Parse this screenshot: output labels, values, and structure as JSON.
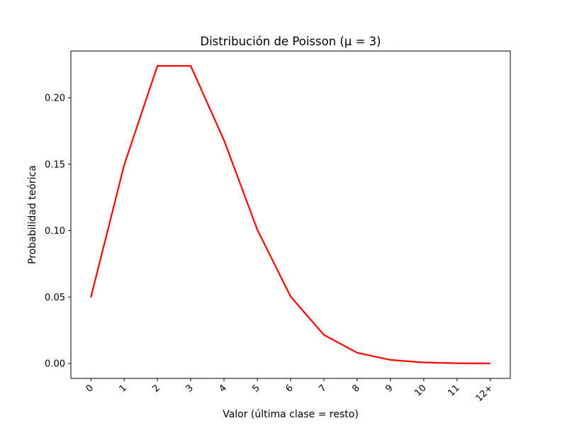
{
  "chart_data": {
    "type": "line",
    "title": "Distribución de Poisson (μ = 3)",
    "xlabel": "Valor (última clase = resto)",
    "ylabel": "Probabilidad teórica",
    "categories": [
      "0",
      "1",
      "2",
      "3",
      "4",
      "5",
      "6",
      "7",
      "8",
      "9",
      "10",
      "11",
      "12+"
    ],
    "series": [
      {
        "values": [
          0.0498,
          0.1494,
          0.224,
          0.224,
          0.168,
          0.1008,
          0.0504,
          0.0216,
          0.0081,
          0.0027,
          0.0008,
          0.0002,
          0.0001
        ],
        "color": "#ff0000"
      }
    ],
    "ylim": [
      -0.0112,
      0.2352
    ],
    "yticks": [
      "0.00",
      "0.05",
      "0.10",
      "0.15",
      "0.20"
    ],
    "grid": false,
    "legend": "none"
  }
}
